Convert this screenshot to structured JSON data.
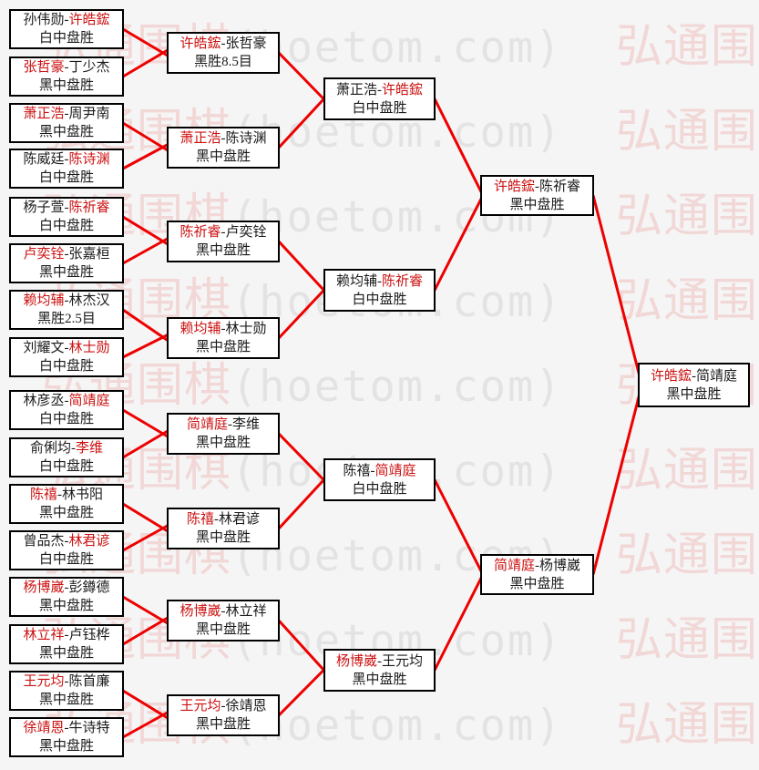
{
  "watermark": {
    "cn": "弘通围棋",
    "latin": "(hoetom.com)"
  },
  "ui": {
    "dash": "-"
  },
  "colors": {
    "connector_line": "#ee0000",
    "winner_text": "#cc1111",
    "watermark_cn": "#f2d7d7",
    "watermark_latin": "#e3e3e3",
    "box_border": "#000000",
    "box_background": "#ffffff",
    "page_background": "#f5f5f5"
  },
  "rounds": [
    {
      "matches": [
        {
          "p1": "孙伟勋",
          "p2": "许皓鋐",
          "winner": 2,
          "result": "白中盘胜"
        },
        {
          "p1": "张哲豪",
          "p2": "丁少杰",
          "winner": 1,
          "result": "黑中盘胜"
        },
        {
          "p1": "萧正浩",
          "p2": "周尹南",
          "winner": 1,
          "result": "黑中盘胜"
        },
        {
          "p1": "陈威廷",
          "p2": "陈诗渊",
          "winner": 2,
          "result": "白中盘胜"
        },
        {
          "p1": "杨子萱",
          "p2": "陈祈睿",
          "winner": 2,
          "result": "白中盘胜"
        },
        {
          "p1": "卢奕铨",
          "p2": "张嘉桓",
          "winner": 1,
          "result": "黑中盘胜"
        },
        {
          "p1": "赖均辅",
          "p2": "林杰汉",
          "winner": 1,
          "result": "黑胜2.5目"
        },
        {
          "p1": "刘耀文",
          "p2": "林士勋",
          "winner": 2,
          "result": "白中盘胜"
        },
        {
          "p1": "林彦丞",
          "p2": "简靖庭",
          "winner": 2,
          "result": "白中盘胜"
        },
        {
          "p1": "俞俐均",
          "p2": "李维",
          "winner": 2,
          "result": "白中盘胜"
        },
        {
          "p1": "陈禧",
          "p2": "林书阳",
          "winner": 1,
          "result": "黑中盘胜"
        },
        {
          "p1": "曾品杰",
          "p2": "林君谚",
          "winner": 2,
          "result": "白中盘胜"
        },
        {
          "p1": "杨博崴",
          "p2": "彭鐏德",
          "winner": 1,
          "result": "黑中盘胜"
        },
        {
          "p1": "林立祥",
          "p2": "卢钰桦",
          "winner": 1,
          "result": "黑中盘胜"
        },
        {
          "p1": "王元均",
          "p2": "陈首廉",
          "winner": 1,
          "result": "黑中盘胜"
        },
        {
          "p1": "徐靖恩",
          "p2": "牛诗特",
          "winner": 1,
          "result": "黑中盘胜"
        }
      ]
    },
    {
      "matches": [
        {
          "p1": "许皓鋐",
          "p2": "张哲豪",
          "winner": 1,
          "result": "黑胜8.5目"
        },
        {
          "p1": "萧正浩",
          "p2": "陈诗渊",
          "winner": 1,
          "result": "黑中盘胜"
        },
        {
          "p1": "陈祈睿",
          "p2": "卢奕铨",
          "winner": 1,
          "result": "黑中盘胜"
        },
        {
          "p1": "赖均辅",
          "p2": "林士勋",
          "winner": 1,
          "result": "黑中盘胜"
        },
        {
          "p1": "简靖庭",
          "p2": "李维",
          "winner": 1,
          "result": "黑中盘胜"
        },
        {
          "p1": "陈禧",
          "p2": "林君谚",
          "winner": 1,
          "result": "黑中盘胜"
        },
        {
          "p1": "杨博崴",
          "p2": "林立祥",
          "winner": 1,
          "result": "黑中盘胜"
        },
        {
          "p1": "王元均",
          "p2": "徐靖恩",
          "winner": 1,
          "result": "黑中盘胜"
        }
      ]
    },
    {
      "matches": [
        {
          "p1": "萧正浩",
          "p2": "许皓鋐",
          "winner": 2,
          "result": "白中盘胜"
        },
        {
          "p1": "赖均辅",
          "p2": "陈祈睿",
          "winner": 2,
          "result": "白中盘胜"
        },
        {
          "p1": "陈禧",
          "p2": "简靖庭",
          "winner": 2,
          "result": "白中盘胜"
        },
        {
          "p1": "杨博崴",
          "p2": "王元均",
          "winner": 1,
          "result": "黑中盘胜"
        }
      ]
    },
    {
      "matches": [
        {
          "p1": "许皓鋐",
          "p2": "陈祈睿",
          "winner": 1,
          "result": "黑中盘胜"
        },
        {
          "p1": "简靖庭",
          "p2": "杨博崴",
          "winner": 1,
          "result": "黑中盘胜"
        }
      ]
    },
    {
      "matches": [
        {
          "p1": "许皓鋐",
          "p2": "简靖庭",
          "winner": 1,
          "result": "黑中盘胜"
        }
      ]
    }
  ]
}
